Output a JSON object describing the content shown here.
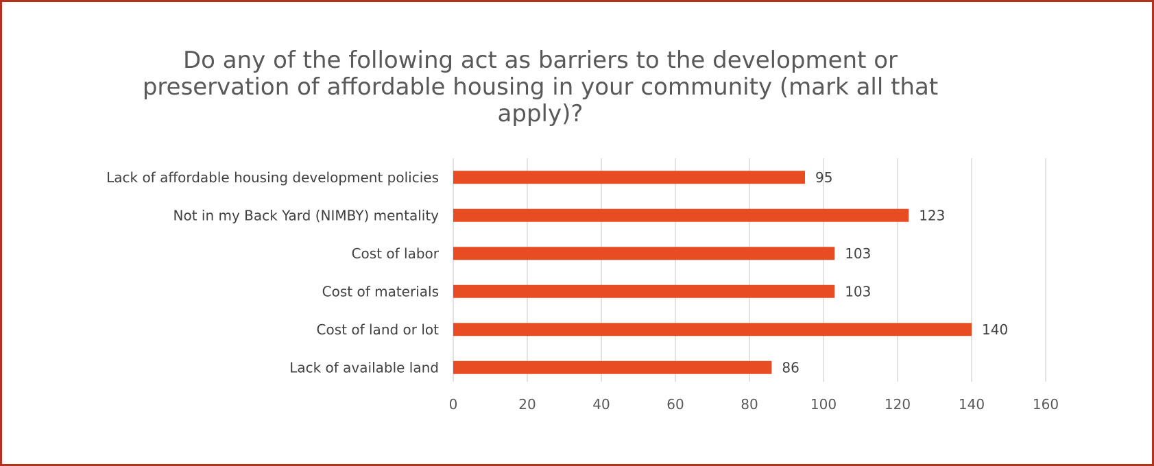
{
  "chart_data": {
    "type": "bar",
    "orientation": "horizontal",
    "title": "Do any of the following act as barriers to the development or\npreservation of affordable housing in your community (mark all that\napply)?",
    "categories": [
      "Lack of affordable housing development policies",
      "Not in my Back Yard (NIMBY) mentality",
      "Cost of labor",
      "Cost of materials",
      "Cost of land or lot",
      "Lack of available land"
    ],
    "values": [
      95,
      123,
      103,
      103,
      140,
      86
    ],
    "xlim": [
      0,
      160
    ],
    "xticks": [
      "0",
      "20",
      "40",
      "60",
      "80",
      "100",
      "120",
      "140",
      "160"
    ],
    "grid": true,
    "data_labels": true,
    "bar_color": "#e84c22",
    "frame_color": "#b0341d"
  }
}
